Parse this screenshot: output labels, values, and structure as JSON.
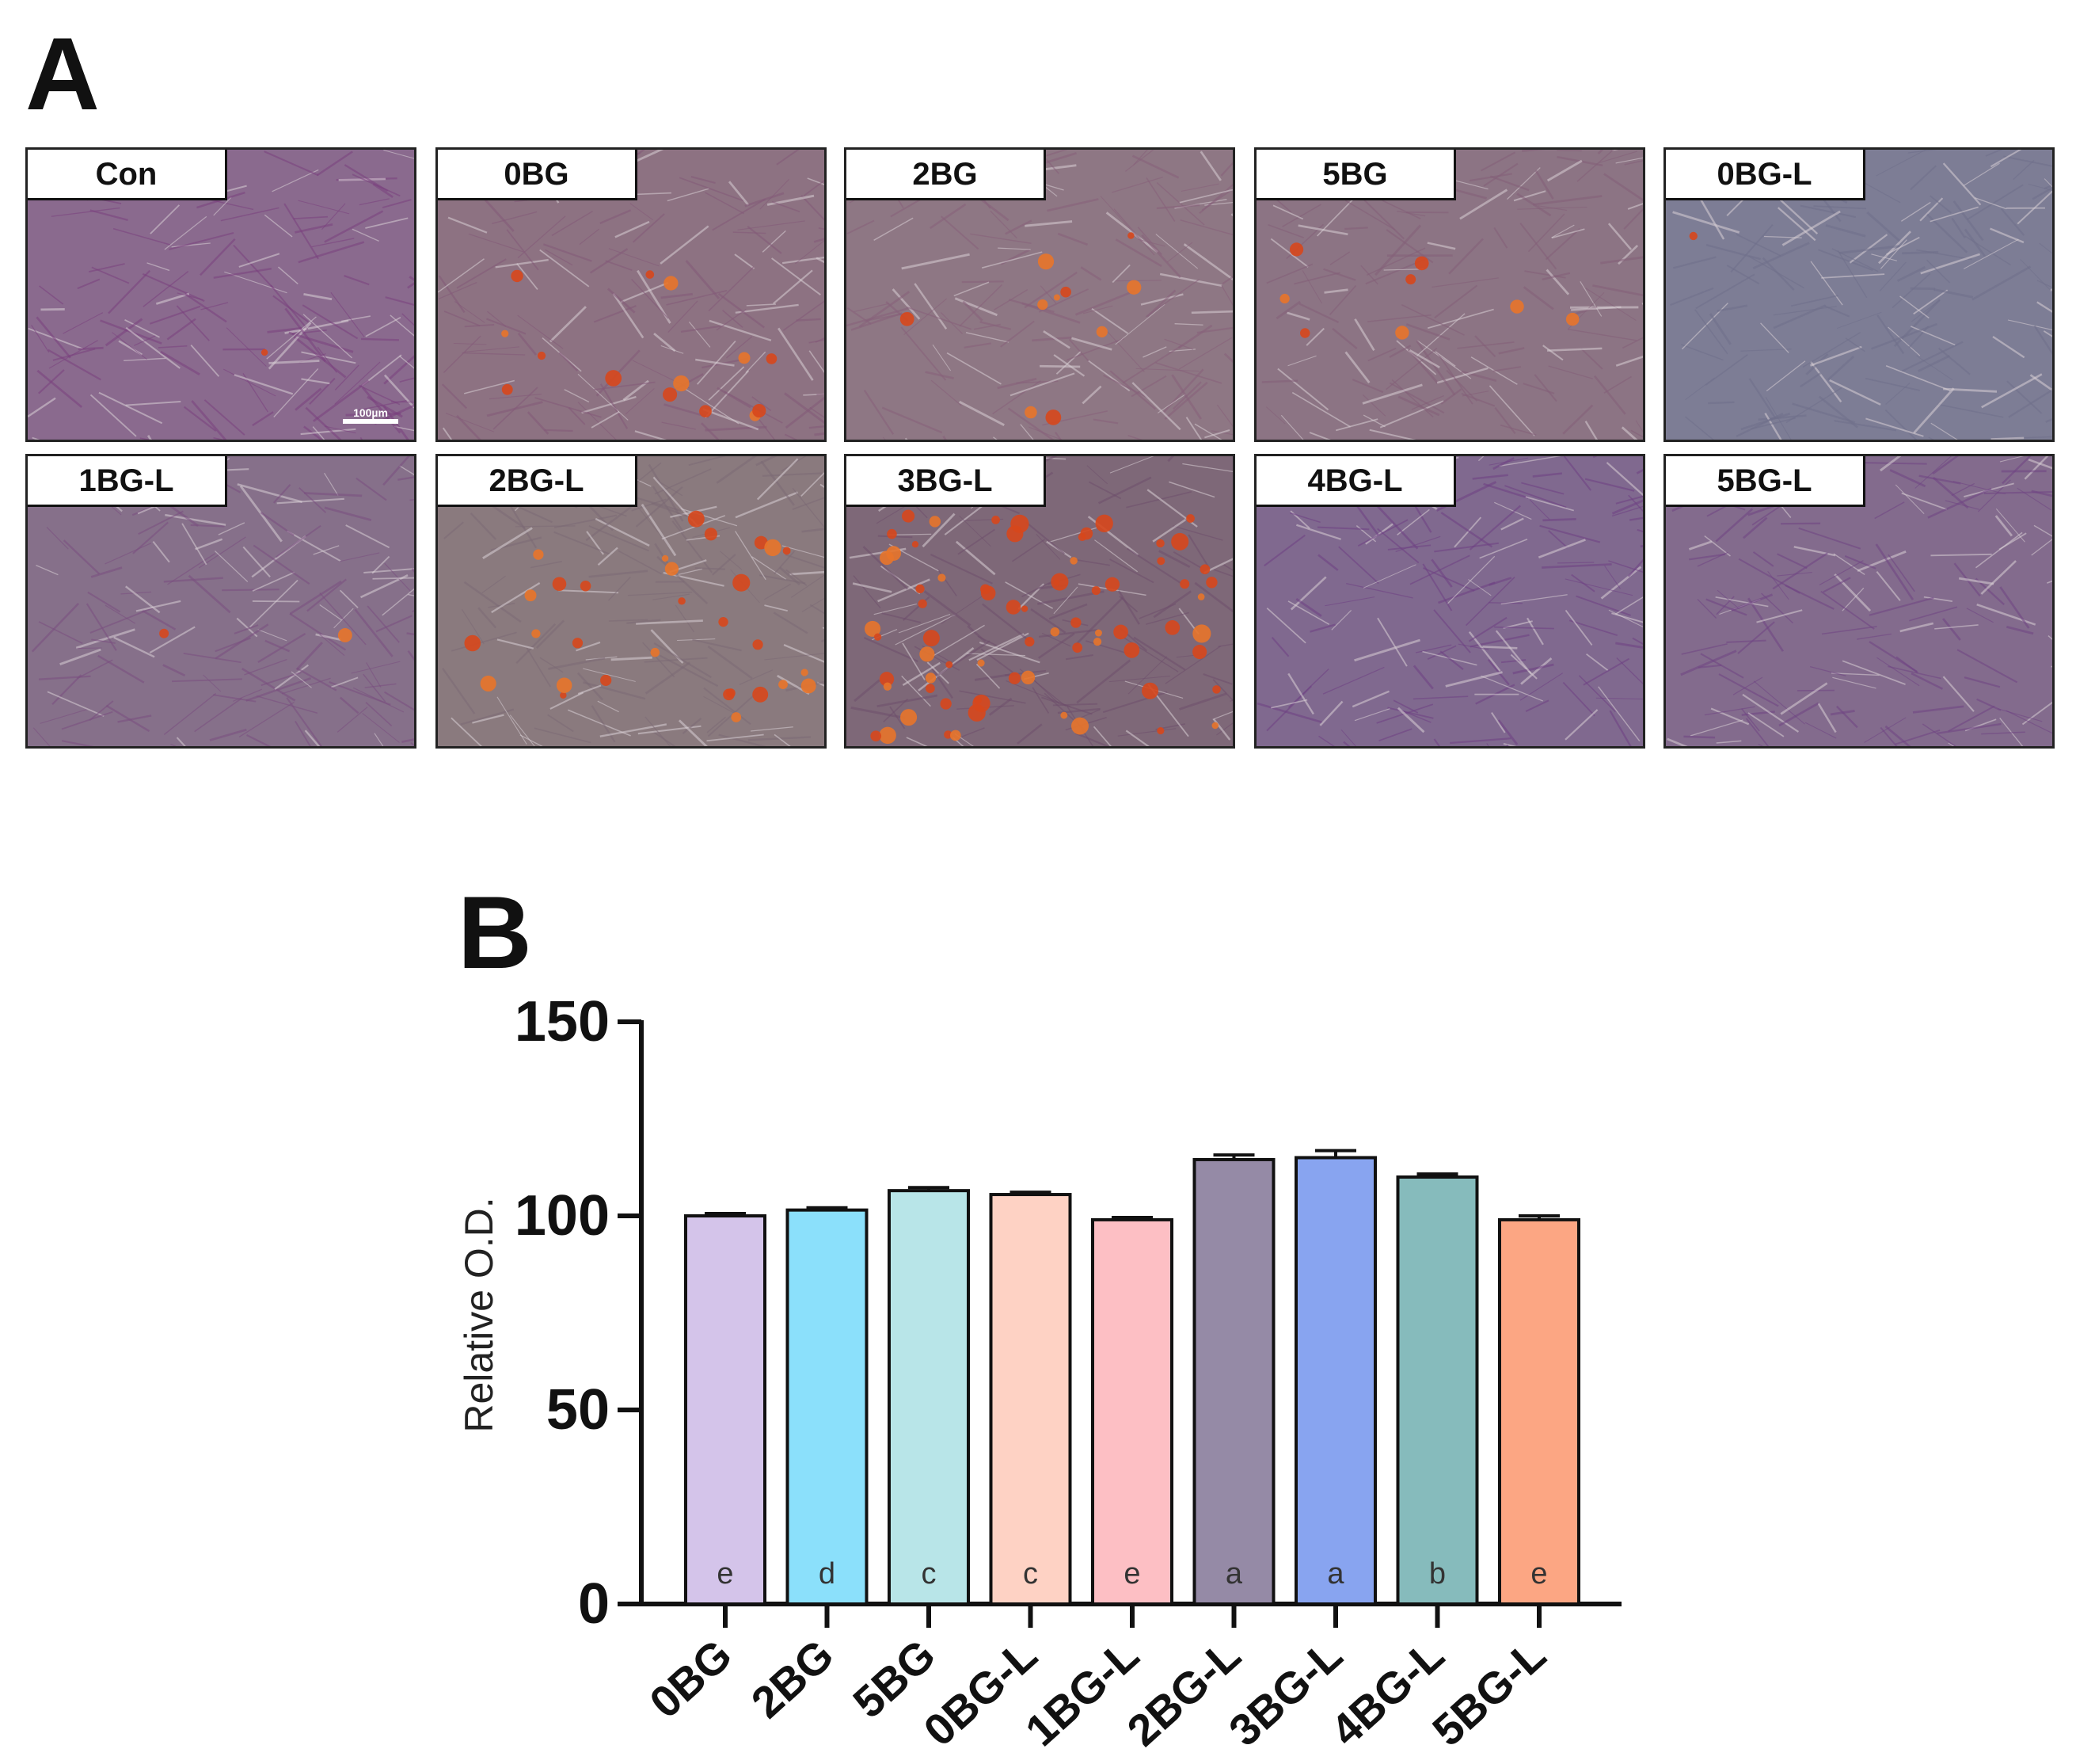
{
  "panels": {
    "a_label": "A",
    "b_label": "B"
  },
  "micrographs": [
    {
      "label": "Con",
      "tint": "#8a6a8e",
      "stain": "#7a3f7e",
      "red_spots": 1
    },
    {
      "label": "0BG",
      "tint": "#8d7282",
      "stain": "#835a78",
      "red_spots": 14
    },
    {
      "label": "2BG",
      "tint": "#8e7784",
      "stain": "#86607a",
      "red_spots": 10
    },
    {
      "label": "5BG",
      "tint": "#8c7484",
      "stain": "#845e78",
      "red_spots": 8
    },
    {
      "label": "0BG-L",
      "tint": "#7d7d95",
      "stain": "#6f6f8a",
      "red_spots": 1
    },
    {
      "label": "1BG-L",
      "tint": "#86708a",
      "stain": "#7a4f80",
      "red_spots": 2
    },
    {
      "label": "2BG-L",
      "tint": "#8a7a7e",
      "stain": "#7b6a74",
      "red_spots": 30
    },
    {
      "label": "3BG-L",
      "tint": "#7e6878",
      "stain": "#6e4f6c",
      "red_spots": 70
    },
    {
      "label": "4BG-L",
      "tint": "#80698f",
      "stain": "#6d3f84",
      "red_spots": 0
    },
    {
      "label": "5BG-L",
      "tint": "#836b8d",
      "stain": "#704483",
      "red_spots": 0
    }
  ],
  "scale_bar_label": "100µm",
  "chart_data": {
    "type": "bar",
    "categories": [
      "0BG",
      "2BG",
      "5BG",
      "0BG-L",
      "1BG-L",
      "2BG-L",
      "3BG-L",
      "4BG-L",
      "5BG-L"
    ],
    "values": [
      100,
      101.5,
      106.5,
      105.5,
      99,
      114.5,
      115,
      110,
      99
    ],
    "errors": [
      0.6,
      0.6,
      0.8,
      0.6,
      0.6,
      1.2,
      1.8,
      0.8,
      1.0
    ],
    "significance_letters": [
      "e",
      "d",
      "c",
      "c",
      "e",
      "a",
      "a",
      "b",
      "e"
    ],
    "colors": [
      "#d4c4ea",
      "#8be0fb",
      "#b8e5e8",
      "#fed2c4",
      "#fdbfc4",
      "#958aa6",
      "#88a4f0",
      "#86bbbc",
      "#fca683"
    ],
    "ylabel": "Relative O.D.",
    "ylim": [
      0,
      150
    ],
    "yticks": [
      0,
      50,
      100,
      150
    ],
    "grid": false
  }
}
